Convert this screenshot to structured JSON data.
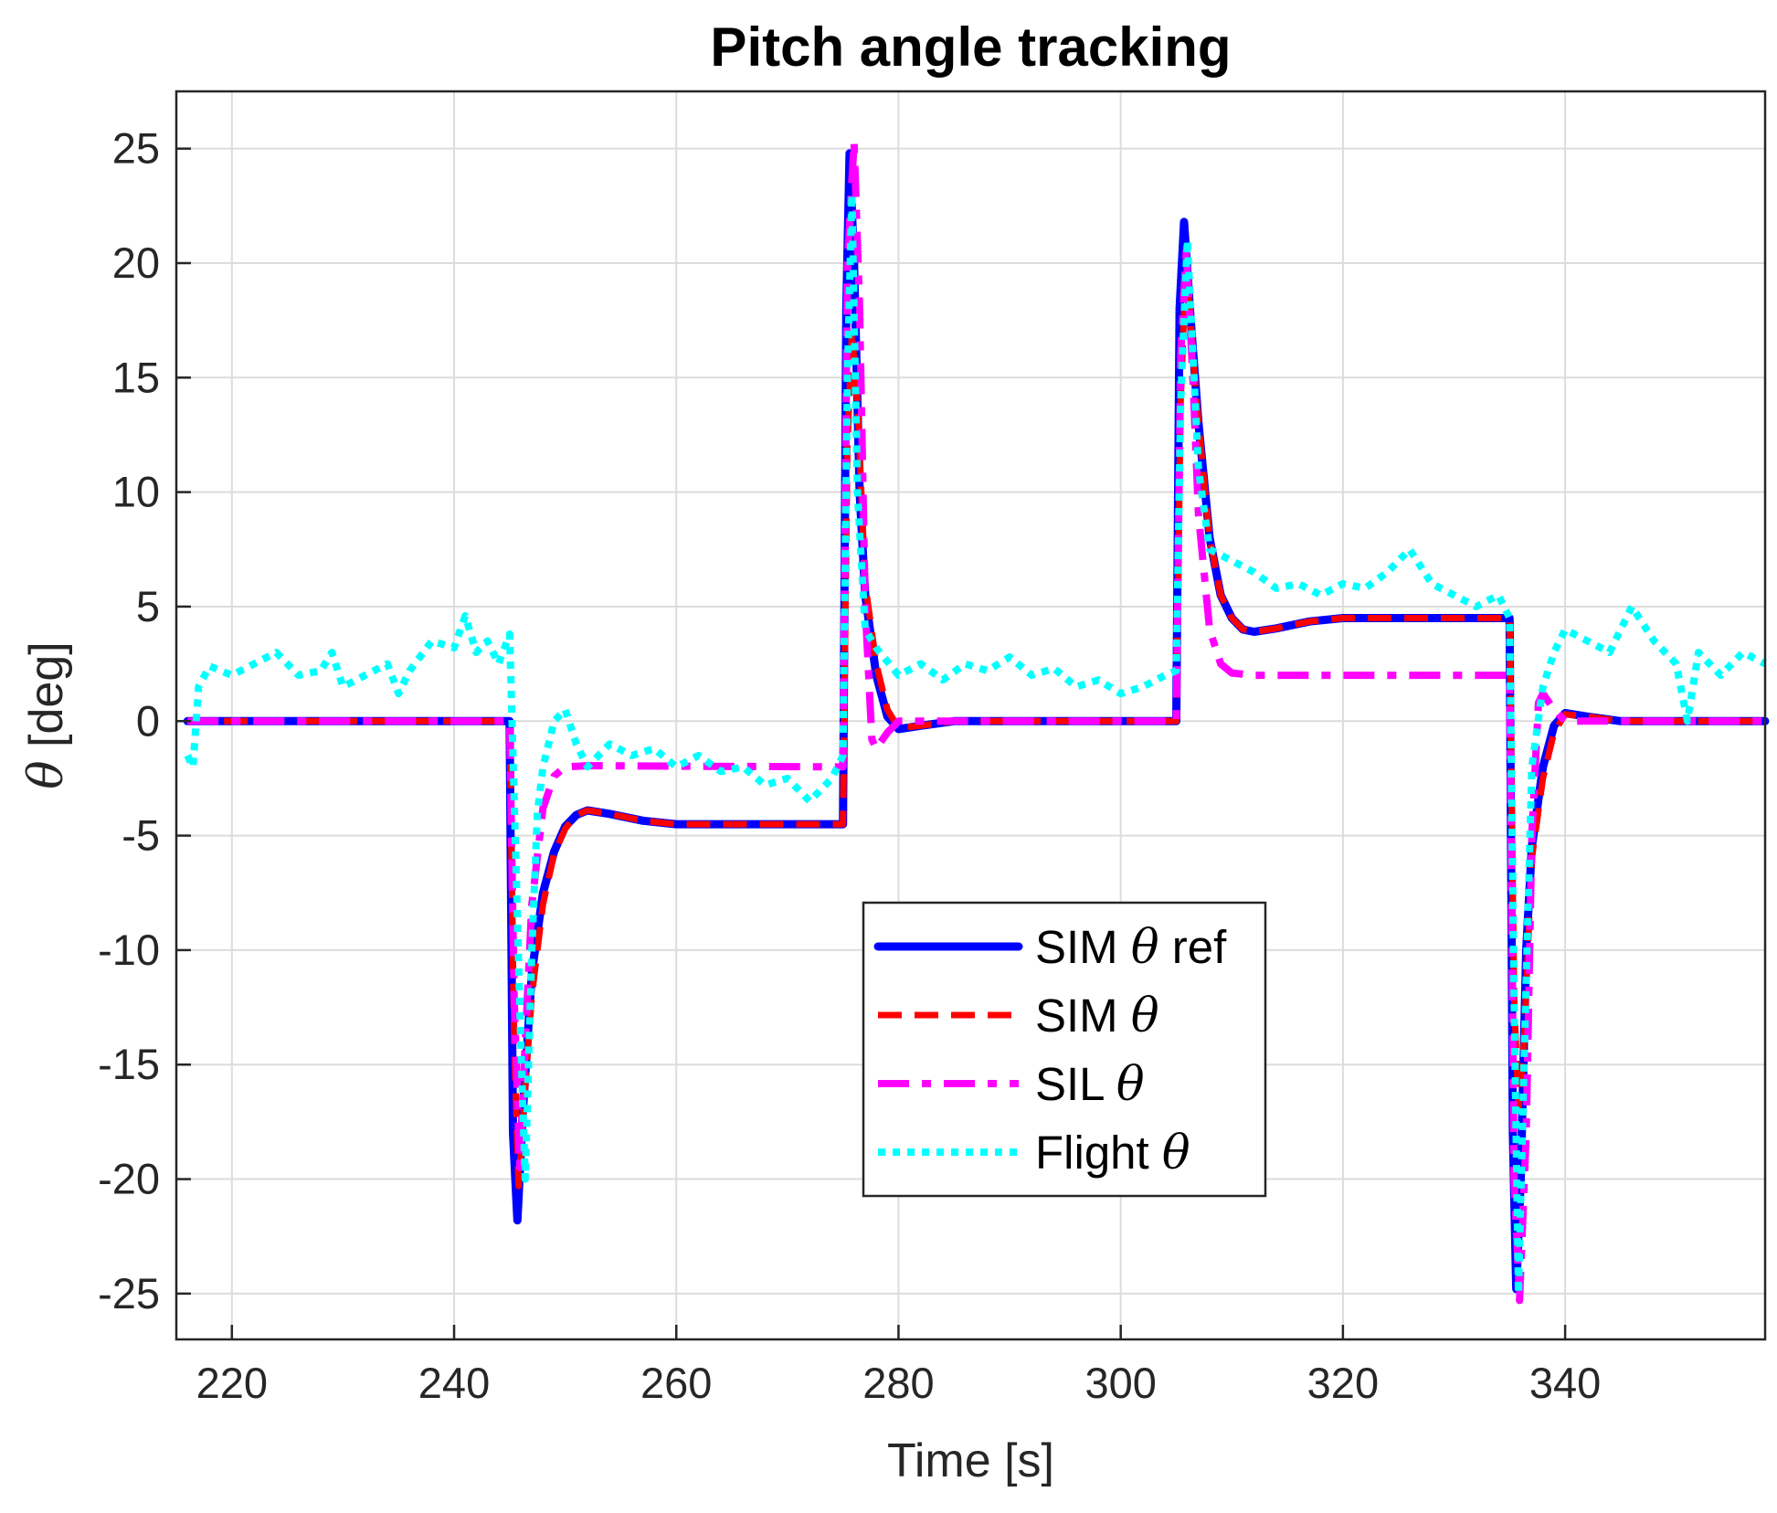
{
  "chart_data": {
    "type": "line",
    "title": "Pitch angle tracking",
    "xlabel": "Time [s]",
    "ylabel": "θ [deg]",
    "xlim": [
      215,
      358
    ],
    "ylim": [
      -27,
      27.5
    ],
    "xticks": [
      220,
      240,
      260,
      280,
      300,
      320,
      340
    ],
    "yticks": [
      -25,
      -20,
      -15,
      -10,
      -5,
      0,
      5,
      10,
      15,
      20,
      25
    ],
    "xtick_labels": [
      "220",
      "240",
      "260",
      "280",
      "300",
      "320",
      "340"
    ],
    "ytick_labels": [
      "-25",
      "-20",
      "-15",
      "-10",
      "-5",
      "0",
      "5",
      "10",
      "15",
      "20",
      "25"
    ],
    "grid": true,
    "legend_position": "lower-middle",
    "series": [
      {
        "name": "SIM θ ref",
        "legend_label": "SIM",
        "legend_suffix": "ref",
        "color": "#0000ff",
        "style": "solid",
        "points": [
          [
            216,
            0
          ],
          [
            245,
            0
          ],
          [
            245.3,
            -18
          ],
          [
            245.7,
            -21.8
          ],
          [
            246.2,
            -17
          ],
          [
            247,
            -11
          ],
          [
            248,
            -7.5
          ],
          [
            249,
            -5.7
          ],
          [
            250,
            -4.6
          ],
          [
            251,
            -4.1
          ],
          [
            252,
            -3.9
          ],
          [
            254,
            -4.05
          ],
          [
            257,
            -4.35
          ],
          [
            260,
            -4.5
          ],
          [
            275,
            -4.5
          ],
          [
            275.3,
            18
          ],
          [
            275.6,
            24.8
          ],
          [
            276,
            20
          ],
          [
            276.5,
            10
          ],
          [
            277,
            5.5
          ],
          [
            278,
            2
          ],
          [
            279,
            0.2
          ],
          [
            280,
            -0.35
          ],
          [
            282,
            -0.2
          ],
          [
            285,
            0
          ],
          [
            305,
            0
          ],
          [
            305.3,
            18
          ],
          [
            305.7,
            21.8
          ],
          [
            306.3,
            17.5
          ],
          [
            307,
            13
          ],
          [
            308,
            8
          ],
          [
            309,
            5.5
          ],
          [
            310,
            4.5
          ],
          [
            311,
            4
          ],
          [
            312,
            3.9
          ],
          [
            314,
            4.05
          ],
          [
            317,
            4.35
          ],
          [
            320,
            4.5
          ],
          [
            335,
            4.5
          ],
          [
            335.3,
            -18
          ],
          [
            335.6,
            -24.8
          ],
          [
            336,
            -20
          ],
          [
            336.5,
            -10
          ],
          [
            337,
            -5.5
          ],
          [
            338,
            -2
          ],
          [
            339,
            -0.2
          ],
          [
            340,
            0.35
          ],
          [
            342,
            0.2
          ],
          [
            345,
            0
          ],
          [
            358,
            0
          ]
        ]
      },
      {
        "name": "SIM θ",
        "legend_label": "SIM",
        "legend_suffix": "",
        "color": "#ff0000",
        "style": "dashed",
        "points": [
          [
            216,
            0
          ],
          [
            245,
            0
          ],
          [
            245.4,
            -14
          ],
          [
            245.8,
            -20.3
          ],
          [
            246.4,
            -16
          ],
          [
            247,
            -12
          ],
          [
            248,
            -8
          ],
          [
            249,
            -5.8
          ],
          [
            250,
            -4.7
          ],
          [
            251,
            -4.1
          ],
          [
            252,
            -3.9
          ],
          [
            254,
            -4.05
          ],
          [
            257,
            -4.35
          ],
          [
            260,
            -4.5
          ],
          [
            275,
            -4.5
          ],
          [
            275.4,
            12
          ],
          [
            275.8,
            17
          ],
          [
            276.3,
            14
          ],
          [
            277,
            6
          ],
          [
            278,
            2.5
          ],
          [
            279,
            0.5
          ],
          [
            280,
            -0.3
          ],
          [
            282,
            -0.2
          ],
          [
            285,
            0
          ],
          [
            305,
            0
          ],
          [
            305.4,
            14
          ],
          [
            305.9,
            20.3
          ],
          [
            306.5,
            16
          ],
          [
            307,
            13
          ],
          [
            308,
            8
          ],
          [
            309,
            5.5
          ],
          [
            310,
            4.5
          ],
          [
            311,
            4
          ],
          [
            312,
            3.9
          ],
          [
            314,
            4.05
          ],
          [
            317,
            4.35
          ],
          [
            320,
            4.5
          ],
          [
            335,
            4.5
          ],
          [
            335.4,
            -12
          ],
          [
            335.8,
            -17
          ],
          [
            336.3,
            -14
          ],
          [
            337,
            -6
          ],
          [
            338,
            -2.5
          ],
          [
            339,
            -0.5
          ],
          [
            340,
            0.3
          ],
          [
            342,
            0.2
          ],
          [
            345,
            0
          ],
          [
            358,
            0
          ]
        ]
      },
      {
        "name": "SIL θ",
        "legend_label": "SIL",
        "legend_suffix": "",
        "color": "#ff00ff",
        "style": "dashdot",
        "points": [
          [
            216,
            0
          ],
          [
            245,
            0
          ],
          [
            245.4,
            -12
          ],
          [
            245.9,
            -19.5
          ],
          [
            246.5,
            -13
          ],
          [
            247,
            -8
          ],
          [
            248,
            -3.8
          ],
          [
            249,
            -2.4
          ],
          [
            250,
            -2
          ],
          [
            252,
            -1.95
          ],
          [
            275,
            -2
          ],
          [
            275.4,
            20
          ],
          [
            276,
            25.3
          ],
          [
            276.5,
            18
          ],
          [
            277,
            5
          ],
          [
            277.6,
            -0.8
          ],
          [
            278,
            -1.2
          ],
          [
            279,
            -0.5
          ],
          [
            280,
            0
          ],
          [
            285,
            0
          ],
          [
            305,
            0
          ],
          [
            305.4,
            16
          ],
          [
            305.9,
            20.5
          ],
          [
            306.5,
            15
          ],
          [
            307,
            9
          ],
          [
            308,
            4
          ],
          [
            309,
            2.5
          ],
          [
            310,
            2.1
          ],
          [
            312,
            2
          ],
          [
            335,
            2
          ],
          [
            335.4,
            -20
          ],
          [
            335.9,
            -25.3
          ],
          [
            336.5,
            -18
          ],
          [
            337,
            -5
          ],
          [
            337.6,
            0.8
          ],
          [
            338,
            1.2
          ],
          [
            339,
            0.5
          ],
          [
            340,
            0
          ],
          [
            345,
            0
          ],
          [
            358,
            0
          ]
        ]
      },
      {
        "name": "Flight θ",
        "legend_label": "Flight",
        "legend_suffix": "",
        "color": "#00ffff",
        "style": "dotted",
        "points": [
          [
            216,
            -1.5
          ],
          [
            216.5,
            -2
          ],
          [
            217,
            1.5
          ],
          [
            218,
            2.4
          ],
          [
            220,
            2
          ],
          [
            222,
            2.5
          ],
          [
            224,
            3
          ],
          [
            226,
            2
          ],
          [
            228,
            2.2
          ],
          [
            229,
            3
          ],
          [
            230,
            1.5
          ],
          [
            232,
            2
          ],
          [
            234,
            2.5
          ],
          [
            235,
            1.2
          ],
          [
            236,
            2.2
          ],
          [
            238,
            3.5
          ],
          [
            240,
            3.2
          ],
          [
            241,
            4.6
          ],
          [
            242,
            3
          ],
          [
            243,
            3.5
          ],
          [
            244,
            2.5
          ],
          [
            245,
            3.8
          ],
          [
            245.5,
            -5
          ],
          [
            246,
            -14
          ],
          [
            246.4,
            -20
          ],
          [
            247,
            -10
          ],
          [
            247.5,
            -4
          ],
          [
            248,
            -2
          ],
          [
            249,
            0
          ],
          [
            250,
            0.5
          ],
          [
            251,
            -1
          ],
          [
            252,
            -2
          ],
          [
            254,
            -1
          ],
          [
            256,
            -1.5
          ],
          [
            258,
            -1.2
          ],
          [
            260,
            -2
          ],
          [
            262,
            -1.5
          ],
          [
            264,
            -2.2
          ],
          [
            266,
            -2
          ],
          [
            268,
            -2.8
          ],
          [
            270,
            -2.5
          ],
          [
            272,
            -3.5
          ],
          [
            274,
            -2.5
          ],
          [
            275,
            -1.5
          ],
          [
            275.4,
            15
          ],
          [
            275.8,
            23
          ],
          [
            276.3,
            10
          ],
          [
            277,
            4
          ],
          [
            278,
            3.2
          ],
          [
            280,
            2
          ],
          [
            282,
            2.5
          ],
          [
            284,
            1.8
          ],
          [
            286,
            2.5
          ],
          [
            288,
            2.2
          ],
          [
            290,
            2.8
          ],
          [
            292,
            2
          ],
          [
            294,
            2.3
          ],
          [
            296,
            1.5
          ],
          [
            298,
            1.8
          ],
          [
            300,
            1.2
          ],
          [
            302,
            1.5
          ],
          [
            304,
            2
          ],
          [
            305,
            2.2
          ],
          [
            305.4,
            14
          ],
          [
            306,
            21
          ],
          [
            306.6,
            15
          ],
          [
            307,
            11
          ],
          [
            308,
            7.5
          ],
          [
            310,
            7
          ],
          [
            312,
            6.5
          ],
          [
            314,
            5.8
          ],
          [
            316,
            6
          ],
          [
            318,
            5.5
          ],
          [
            320,
            6
          ],
          [
            322,
            5.8
          ],
          [
            324,
            6.5
          ],
          [
            326,
            7.5
          ],
          [
            328,
            6
          ],
          [
            330,
            5.5
          ],
          [
            332,
            5
          ],
          [
            334,
            5.5
          ],
          [
            335,
            4.5
          ],
          [
            335.4,
            -12
          ],
          [
            335.8,
            -25
          ],
          [
            336.3,
            -15
          ],
          [
            337,
            -2
          ],
          [
            338,
            1.5
          ],
          [
            339,
            3
          ],
          [
            340,
            4
          ],
          [
            342,
            3.5
          ],
          [
            344,
            3
          ],
          [
            346,
            5
          ],
          [
            348,
            3.5
          ],
          [
            350,
            2.5
          ],
          [
            351,
            0
          ],
          [
            352,
            3
          ],
          [
            354,
            2
          ],
          [
            356,
            3
          ],
          [
            358,
            2.5
          ]
        ]
      }
    ]
  }
}
